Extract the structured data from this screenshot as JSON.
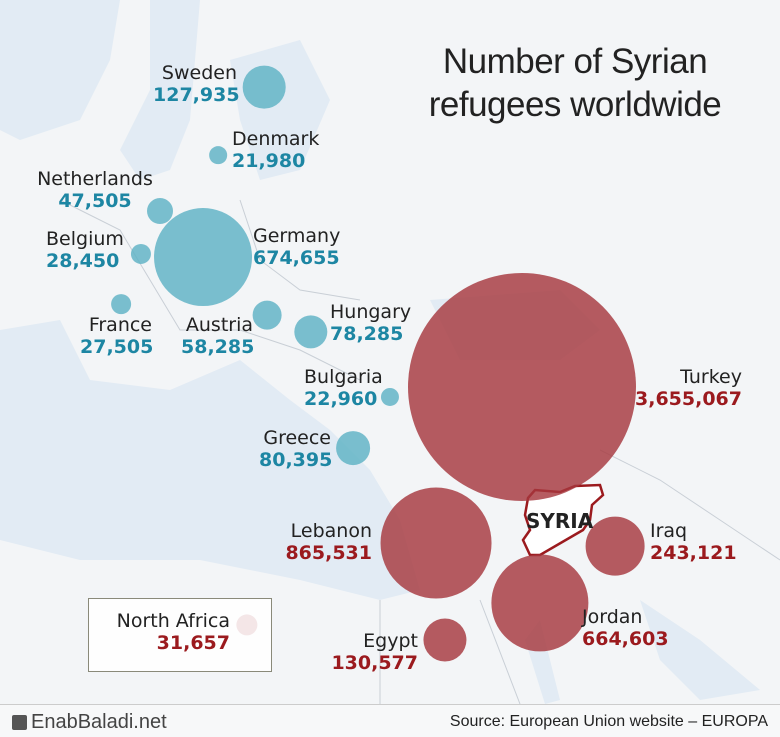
{
  "title": {
    "line1": "Number of Syrian",
    "line2": "refugees worldwide"
  },
  "colors": {
    "europe": "#5eb2c4",
    "region": "#a6383e",
    "europe_text": "#1d86a3",
    "region_text": "#9b1a1e"
  },
  "countries": [
    {
      "name": "Sweden",
      "value": "127,935",
      "n": 127935
    },
    {
      "name": "Denmark",
      "value": "21,980",
      "n": 21980
    },
    {
      "name": "Netherlands",
      "value": "47,505",
      "n": 47505
    },
    {
      "name": "Belgium",
      "value": "28,450",
      "n": 28450
    },
    {
      "name": "Germany",
      "value": "674,655",
      "n": 674655
    },
    {
      "name": "France",
      "value": "27,505",
      "n": 27505
    },
    {
      "name": "Austria",
      "value": "58,285",
      "n": 58285
    },
    {
      "name": "Hungary",
      "value": "78,285",
      "n": 78285
    },
    {
      "name": "Bulgaria",
      "value": "22,960",
      "n": 22960
    },
    {
      "name": "Greece",
      "value": "80,395",
      "n": 80395
    },
    {
      "name": "Turkey",
      "value": "3,655,067",
      "n": 3655067
    },
    {
      "name": "Lebanon",
      "value": "865,531",
      "n": 865531
    },
    {
      "name": "Iraq",
      "value": "243,121",
      "n": 243121
    },
    {
      "name": "Jordan",
      "value": "664,603",
      "n": 664603
    },
    {
      "name": "Egypt",
      "value": "130,577",
      "n": 130577
    },
    {
      "name": "North Africa",
      "value": "31,657",
      "n": 31657
    }
  ],
  "syria_label": "SYRIA",
  "footer": {
    "logo": "EnabBaladi.net",
    "source": "Source: European Union website – EUROPA"
  }
}
